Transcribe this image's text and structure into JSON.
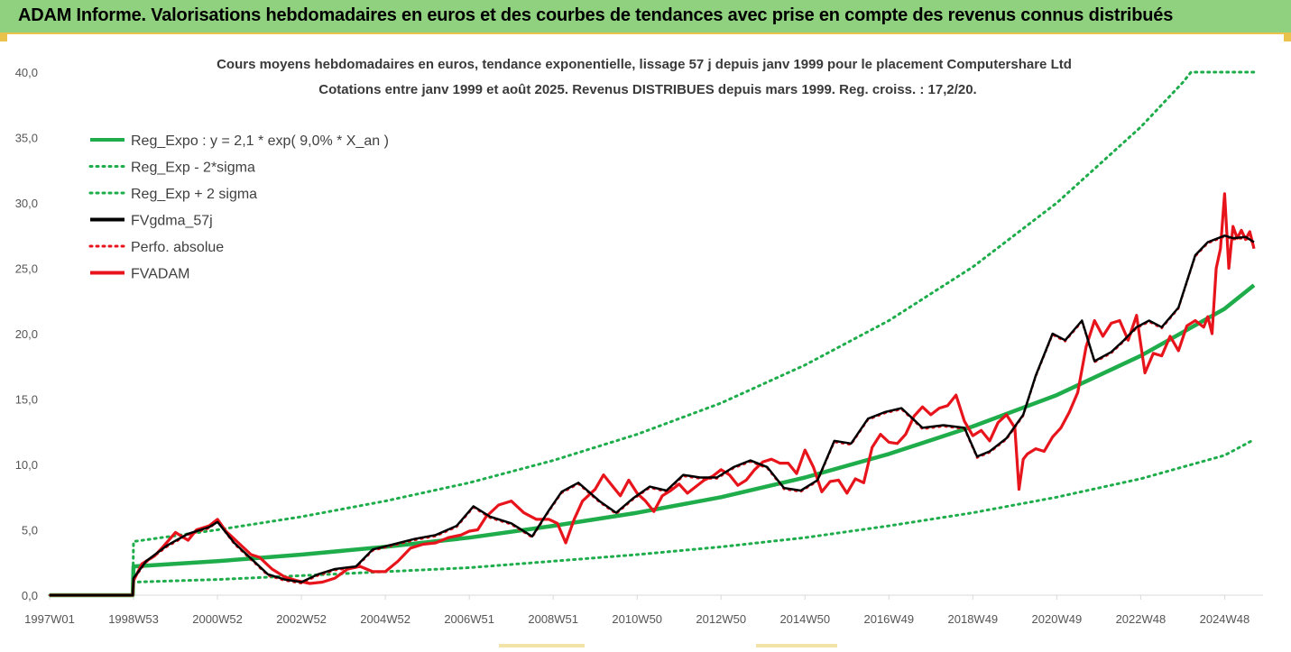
{
  "banner": {
    "title": "ADAM Informe. Valorisations hebdomadaires en euros et des courbes de tendances avec prise en compte des revenus connus distribués"
  },
  "colors": {
    "banner_bg": "#8fd17e",
    "accent": "#e9c24b",
    "reg_expo": "#1fad4c",
    "band": "#1fad4c",
    "fvgdma": "#000000",
    "perfo": "#e8141c",
    "fvadam": "#e8141c"
  },
  "chart_data": {
    "type": "line",
    "title_line1": "Cours moyens hebdomadaires en euros, tendance exponentielle, lissage 57 j depuis janv 1999 pour le placement Computershare Ltd",
    "title_line2": "Cotations entre janv 1999 et août 2025. Revenus DISTRIBUES depuis mars 1999. Reg. croiss. : 17,2/20.",
    "xlabel": "",
    "ylabel": "",
    "ylim": [
      0,
      40
    ],
    "xlim": [
      1997.0,
      2025.7
    ],
    "y_ticks": [
      "0,0",
      "5,0",
      "10,0",
      "15,0",
      "20,0",
      "25,0",
      "30,0",
      "35,0",
      "40,0"
    ],
    "x_ticks": [
      {
        "label": "1997W01",
        "x": 1997.0
      },
      {
        "label": "1998W53",
        "x": 1999.0
      },
      {
        "label": "2000W52",
        "x": 2001.0
      },
      {
        "label": "2002W52",
        "x": 2003.0
      },
      {
        "label": "2004W52",
        "x": 2005.0
      },
      {
        "label": "2006W51",
        "x": 2007.0
      },
      {
        "label": "2008W51",
        "x": 2009.0
      },
      {
        "label": "2010W50",
        "x": 2011.0
      },
      {
        "label": "2012W50",
        "x": 2013.0
      },
      {
        "label": "2014W50",
        "x": 2015.0
      },
      {
        "label": "2016W49",
        "x": 2017.0
      },
      {
        "label": "2018W49",
        "x": 2019.0
      },
      {
        "label": "2020W49",
        "x": 2021.0
      },
      {
        "label": "2022W48",
        "x": 2023.0
      },
      {
        "label": "2024W48",
        "x": 2025.0
      }
    ],
    "grid": false,
    "legend_position": "top-left",
    "legend": [
      "Reg_Expo : y = 2,1 * exp( 9,0% *  X_an )",
      "Reg_Exp - 2*sigma",
      "Reg_Exp + 2 sigma",
      "FVgdma_57j",
      "Perfo. absolue",
      "FVADAM"
    ],
    "series": [
      {
        "name": "Reg_Expo : y = 2,1 * exp( 9,0% *  X_an )",
        "style": "solid-thick",
        "x": [
          1997.0,
          1998.98,
          1999.0,
          2001.0,
          2003.0,
          2005.0,
          2007.0,
          2009.0,
          2011.0,
          2013.0,
          2015.0,
          2017.0,
          2019.0,
          2021.0,
          2023.0,
          2025.0,
          2025.7
        ],
        "y": [
          0,
          0,
          2.2,
          2.6,
          3.1,
          3.7,
          4.4,
          5.3,
          6.3,
          7.5,
          9.0,
          10.8,
          12.9,
          15.3,
          18.3,
          21.9,
          23.7
        ]
      },
      {
        "name": "Reg_Exp - 2*sigma",
        "style": "dotted",
        "x": [
          1997.0,
          1998.98,
          1999.0,
          2001.0,
          2003.0,
          2005.0,
          2007.0,
          2009.0,
          2011.0,
          2013.0,
          2015.0,
          2017.0,
          2019.0,
          2021.0,
          2023.0,
          2025.0,
          2025.7
        ],
        "y": [
          0,
          0,
          1.0,
          1.2,
          1.5,
          1.8,
          2.1,
          2.6,
          3.1,
          3.7,
          4.4,
          5.3,
          6.3,
          7.5,
          8.9,
          10.7,
          11.9
        ]
      },
      {
        "name": "Reg_Exp + 2 sigma",
        "style": "dotted",
        "x": [
          1997.0,
          1998.98,
          1999.0,
          2001.0,
          2003.0,
          2005.0,
          2007.0,
          2009.0,
          2011.0,
          2013.0,
          2015.0,
          2017.0,
          2019.0,
          2021.0,
          2023.0,
          2024.0,
          2024.2,
          2025.7
        ],
        "y": [
          0,
          0,
          4.1,
          5.0,
          6.0,
          7.2,
          8.6,
          10.3,
          12.3,
          14.7,
          17.6,
          21.0,
          25.1,
          30.0,
          35.8,
          39.2,
          40.0,
          40.0
        ]
      },
      {
        "name": "FVgdma_57j",
        "style": "solid",
        "x": [
          1997.0,
          1998.98,
          1999.0,
          1999.3,
          1999.8,
          2000.3,
          2000.8,
          2001.0,
          2001.4,
          2001.8,
          2002.2,
          2002.6,
          2003.0,
          2003.4,
          2003.8,
          2004.3,
          2004.7,
          2005.2,
          2005.7,
          2006.2,
          2006.7,
          2007.1,
          2007.5,
          2008.0,
          2008.5,
          2008.9,
          2009.2,
          2009.6,
          2010.1,
          2010.5,
          2010.9,
          2011.3,
          2011.7,
          2012.1,
          2012.5,
          2012.9,
          2013.3,
          2013.7,
          2014.1,
          2014.5,
          2014.9,
          2015.3,
          2015.7,
          2016.1,
          2016.5,
          2016.9,
          2017.3,
          2017.8,
          2018.3,
          2018.8,
          2019.1,
          2019.4,
          2019.8,
          2020.2,
          2020.5,
          2020.9,
          2021.2,
          2021.6,
          2021.9,
          2022.3,
          2022.6,
          2022.9,
          2023.2,
          2023.5,
          2023.9,
          2024.3,
          2024.6,
          2025.0,
          2025.2,
          2025.5,
          2025.7
        ],
        "y": [
          0,
          0,
          1.3,
          2.6,
          3.8,
          4.7,
          5.2,
          5.6,
          4.0,
          2.8,
          1.6,
          1.2,
          1.0,
          1.6,
          2.0,
          2.2,
          3.5,
          3.9,
          4.3,
          4.6,
          5.3,
          6.8,
          6.0,
          5.5,
          4.5,
          6.5,
          7.9,
          8.6,
          7.2,
          6.3,
          7.4,
          8.3,
          8.0,
          9.2,
          9.0,
          9.0,
          9.8,
          10.3,
          9.8,
          8.2,
          8.0,
          8.8,
          11.8,
          11.6,
          13.5,
          14.0,
          14.3,
          12.8,
          13.0,
          12.8,
          10.6,
          11.0,
          12.0,
          13.8,
          16.8,
          20.0,
          19.5,
          21.0,
          17.9,
          18.6,
          19.5,
          20.5,
          21.0,
          20.5,
          22.0,
          26.0,
          27.0,
          27.5,
          27.3,
          27.4,
          27.0
        ]
      },
      {
        "name": "Perfo. absolue",
        "style": "dotted",
        "x": [
          1997.0,
          1998.98,
          1999.0,
          1999.3,
          1999.8,
          2000.3,
          2000.8,
          2001.0,
          2001.4,
          2001.8,
          2002.2,
          2002.6,
          2003.0,
          2003.4,
          2003.8,
          2004.3,
          2004.7,
          2005.2,
          2005.7,
          2006.2,
          2006.7,
          2007.1,
          2007.5,
          2008.0,
          2008.5,
          2008.9,
          2009.2,
          2009.6,
          2010.1,
          2010.5,
          2010.9,
          2011.3,
          2011.7,
          2012.1,
          2012.5,
          2012.9,
          2013.3,
          2013.7,
          2014.1,
          2014.5,
          2014.9,
          2015.3,
          2015.7,
          2016.1,
          2016.5,
          2016.9,
          2017.3,
          2017.8,
          2018.3,
          2018.8,
          2019.1,
          2019.4,
          2019.8,
          2020.2,
          2020.5,
          2020.9,
          2021.2,
          2021.6,
          2021.9,
          2022.3,
          2022.6,
          2022.9,
          2023.2,
          2023.5,
          2023.9,
          2024.3,
          2024.6,
          2025.0,
          2025.2,
          2025.5,
          2025.7
        ],
        "y": [
          0,
          0,
          1.2,
          2.5,
          3.7,
          4.6,
          5.1,
          5.6,
          3.9,
          2.7,
          1.5,
          1.1,
          0.9,
          1.5,
          1.9,
          2.1,
          3.4,
          3.8,
          4.2,
          4.5,
          5.2,
          6.7,
          5.9,
          5.4,
          4.4,
          6.4,
          7.8,
          8.5,
          7.1,
          6.2,
          7.3,
          8.2,
          7.9,
          9.1,
          8.9,
          8.9,
          9.7,
          10.2,
          9.7,
          8.1,
          7.9,
          8.7,
          11.7,
          11.5,
          13.4,
          13.9,
          14.2,
          12.7,
          12.9,
          12.7,
          10.5,
          10.9,
          11.9,
          13.7,
          16.7,
          19.9,
          19.4,
          20.9,
          17.8,
          18.5,
          19.4,
          20.4,
          20.9,
          20.4,
          21.9,
          25.9,
          26.9,
          27.4,
          27.2,
          27.3,
          26.9
        ]
      },
      {
        "name": "FVADAM",
        "style": "solid-thick",
        "x": [
          1997.0,
          1998.98,
          1999.0,
          1999.2,
          1999.5,
          1999.7,
          2000.0,
          2000.3,
          2000.5,
          2000.8,
          2001.0,
          2001.2,
          2001.5,
          2001.8,
          2002.0,
          2002.3,
          2002.6,
          2002.9,
          2003.2,
          2003.5,
          2003.8,
          2004.1,
          2004.4,
          2004.7,
          2005.0,
          2005.3,
          2005.6,
          2005.9,
          2006.2,
          2006.5,
          2006.8,
          2007.0,
          2007.2,
          2007.4,
          2007.7,
          2008.0,
          2008.3,
          2008.6,
          2008.9,
          2009.1,
          2009.3,
          2009.5,
          2009.7,
          2010.0,
          2010.2,
          2010.4,
          2010.6,
          2010.8,
          2011.0,
          2011.2,
          2011.4,
          2011.6,
          2011.8,
          2012.0,
          2012.2,
          2012.4,
          2012.6,
          2012.8,
          2013.0,
          2013.2,
          2013.4,
          2013.6,
          2013.8,
          2014.0,
          2014.2,
          2014.4,
          2014.6,
          2014.8,
          2015.0,
          2015.2,
          2015.4,
          2015.6,
          2015.8,
          2016.0,
          2016.2,
          2016.4,
          2016.6,
          2016.8,
          2017.0,
          2017.2,
          2017.4,
          2017.6,
          2017.8,
          2018.0,
          2018.2,
          2018.4,
          2018.6,
          2018.8,
          2019.0,
          2019.2,
          2019.4,
          2019.6,
          2019.8,
          2020.0,
          2020.1,
          2020.2,
          2020.3,
          2020.5,
          2020.7,
          2020.9,
          2021.1,
          2021.3,
          2021.5,
          2021.7,
          2021.9,
          2022.1,
          2022.3,
          2022.5,
          2022.7,
          2022.9,
          2023.1,
          2023.3,
          2023.5,
          2023.7,
          2023.9,
          2024.1,
          2024.3,
          2024.5,
          2024.6,
          2024.7,
          2024.8,
          2024.9,
          2025.0,
          2025.1,
          2025.2,
          2025.3,
          2025.4,
          2025.5,
          2025.6,
          2025.7
        ],
        "y": [
          0,
          0,
          1.1,
          2.4,
          3.0,
          3.7,
          4.8,
          4.2,
          5.0,
          5.3,
          5.8,
          4.9,
          4.0,
          3.1,
          2.9,
          2.0,
          1.4,
          1.1,
          0.9,
          1.0,
          1.3,
          2.0,
          2.2,
          1.8,
          1.8,
          2.6,
          3.6,
          3.9,
          4.0,
          4.4,
          4.6,
          4.9,
          5.0,
          6.0,
          6.9,
          7.2,
          6.3,
          5.8,
          5.8,
          5.5,
          4.0,
          5.8,
          7.2,
          8.1,
          9.2,
          8.4,
          7.6,
          8.8,
          7.8,
          7.2,
          6.4,
          7.6,
          8.0,
          8.5,
          7.8,
          8.3,
          8.8,
          9.1,
          9.6,
          9.2,
          8.4,
          8.8,
          9.6,
          10.2,
          10.4,
          10.1,
          10.1,
          9.3,
          11.1,
          9.8,
          7.9,
          8.7,
          8.8,
          7.8,
          8.9,
          8.6,
          11.3,
          12.3,
          11.7,
          11.6,
          12.3,
          13.7,
          14.4,
          13.8,
          14.3,
          14.5,
          15.3,
          13.3,
          12.2,
          12.6,
          11.8,
          13.2,
          13.8,
          12.8,
          8.1,
          10.4,
          10.8,
          11.2,
          11.0,
          12.1,
          12.8,
          14.0,
          15.5,
          19.0,
          21.0,
          19.8,
          20.8,
          21.0,
          19.5,
          21.4,
          17.0,
          18.5,
          18.3,
          19.8,
          18.7,
          20.6,
          21.0,
          20.5,
          21.3,
          20.0,
          25.0,
          26.5,
          30.7,
          25.0,
          28.2,
          27.3,
          27.9,
          27.2,
          27.8,
          26.5
        ]
      }
    ]
  }
}
